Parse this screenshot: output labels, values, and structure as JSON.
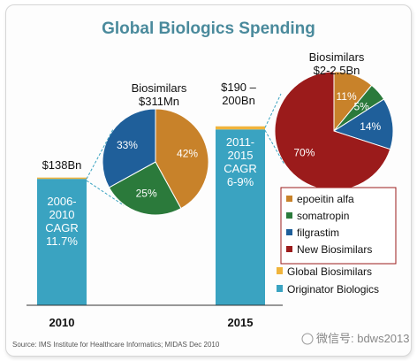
{
  "chart_data": {
    "type": "bar",
    "title": "Global Biologics Spending",
    "categories": [
      "2010",
      "2015"
    ],
    "bars": [
      {
        "year": "2010",
        "value_label": "$138Bn",
        "originator": 138,
        "biosimilar": 0.311,
        "cagr_lines": [
          "2006-",
          "2010",
          "CAGR",
          "11.7%"
        ]
      },
      {
        "year": "2015",
        "value_label_lines": [
          "$190 –",
          "200Bn"
        ],
        "originator": 192,
        "biosimilar": 2.5,
        "cagr_lines": [
          "2011-",
          "2015",
          "CAGR",
          "6-9%"
        ]
      }
    ],
    "pies": [
      {
        "title_lines": [
          "Biosimilars",
          "$311Mn"
        ],
        "slices": [
          {
            "name": "epoeitin alfa",
            "value": 42,
            "label": "42%"
          },
          {
            "name": "somatropin",
            "value": 25,
            "label": "25%"
          },
          {
            "name": "filgrastim",
            "value": 33,
            "label": "33%"
          }
        ]
      },
      {
        "title_lines": [
          "Biosimilars",
          "$2-2.5Bn"
        ],
        "slices": [
          {
            "name": "epoeitin alfa",
            "value": 11,
            "label": "11%"
          },
          {
            "name": "somatropin",
            "value": 5,
            "label": "5%"
          },
          {
            "name": "filgrastim",
            "value": 14,
            "label": "14%"
          },
          {
            "name": "New Biosimilars",
            "value": 70,
            "label": "70%"
          }
        ]
      }
    ],
    "legend": [
      {
        "name": "epoeitin alfa",
        "color": "#c8822a"
      },
      {
        "name": "somatropin",
        "color": "#2b7a3b"
      },
      {
        "name": "filgrastim",
        "color": "#1f5f9a"
      },
      {
        "name": "New Biosimilars",
        "color": "#9b1b1b"
      },
      {
        "name": "Global Biosimilars",
        "color": "#f0b43c"
      },
      {
        "name": "Originator Biologics",
        "color": "#3aa3c1"
      }
    ],
    "source": "Source: IMS Institute for Healthcare Informatics; MIDAS Dec 2010",
    "watermark": "微信号: bdws2013"
  }
}
